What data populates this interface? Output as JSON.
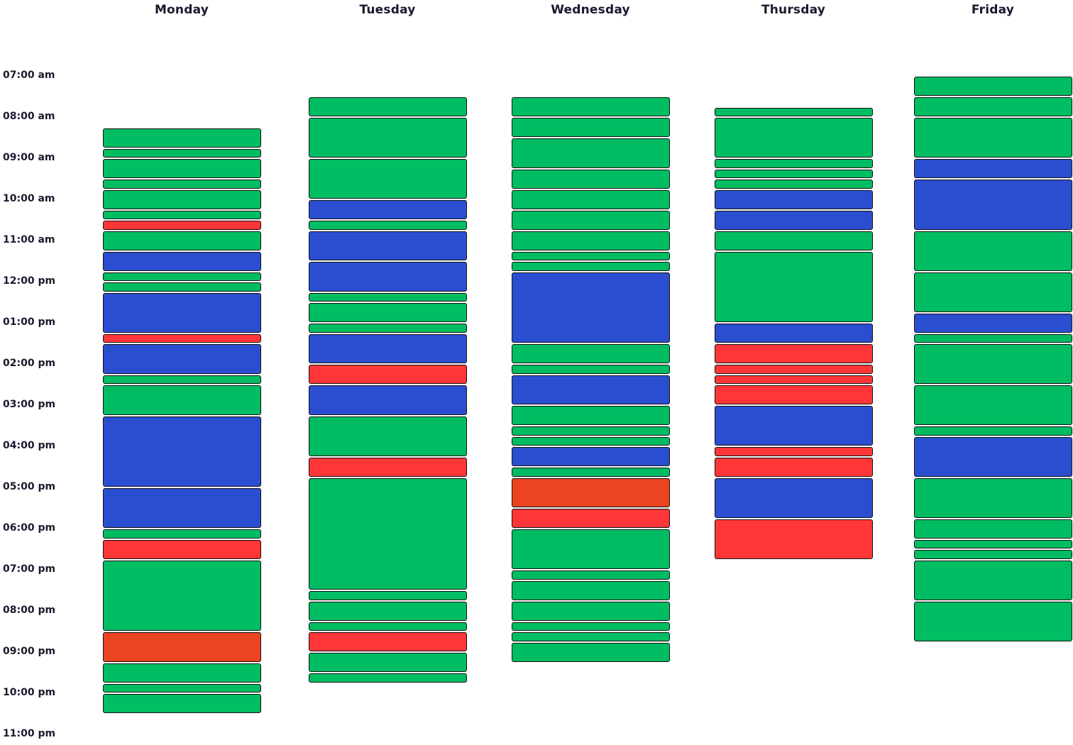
{
  "chart_data": {
    "type": "schedule",
    "title": "",
    "start_hour": 7,
    "days": [
      "Monday",
      "Tuesday",
      "Wednesday",
      "Thursday",
      "Friday"
    ],
    "time_labels": [
      "07:00 am",
      "08:00 am",
      "09:00 am",
      "10:00 am",
      "11:00 am",
      "12:00 pm",
      "01:00 pm",
      "02:00 pm",
      "03:00 pm",
      "04:00 pm",
      "05:00 pm",
      "06:00 pm",
      "07:00 pm",
      "08:00 pm",
      "09:00 pm",
      "10:00 pm",
      "11:00 pm"
    ],
    "categories": {
      "green": "#00bc62",
      "blue": "#2b4ed0",
      "red": "#ff3638",
      "orange": "#ea4422"
    },
    "events": {
      "Monday": [
        {
          "start": 8.25,
          "end": 8.75,
          "category": "green"
        },
        {
          "start": 8.75,
          "end": 9.0,
          "category": "green"
        },
        {
          "start": 9.0,
          "end": 9.5,
          "category": "green"
        },
        {
          "start": 9.5,
          "end": 9.75,
          "category": "green"
        },
        {
          "start": 9.75,
          "end": 10.25,
          "category": "green"
        },
        {
          "start": 10.25,
          "end": 10.5,
          "category": "green"
        },
        {
          "start": 10.5,
          "end": 10.75,
          "category": "red"
        },
        {
          "start": 10.75,
          "end": 11.25,
          "category": "green"
        },
        {
          "start": 11.25,
          "end": 11.75,
          "category": "blue"
        },
        {
          "start": 11.75,
          "end": 12.0,
          "category": "green"
        },
        {
          "start": 12.0,
          "end": 12.25,
          "category": "green"
        },
        {
          "start": 12.25,
          "end": 13.25,
          "category": "blue"
        },
        {
          "start": 13.25,
          "end": 13.5,
          "category": "red"
        },
        {
          "start": 13.5,
          "end": 14.25,
          "category": "blue"
        },
        {
          "start": 14.25,
          "end": 14.5,
          "category": "green"
        },
        {
          "start": 14.5,
          "end": 15.25,
          "category": "green"
        },
        {
          "start": 15.25,
          "end": 17.0,
          "category": "blue"
        },
        {
          "start": 17.0,
          "end": 18.0,
          "category": "blue"
        },
        {
          "start": 18.0,
          "end": 18.25,
          "category": "green"
        },
        {
          "start": 18.25,
          "end": 18.75,
          "category": "red"
        },
        {
          "start": 18.75,
          "end": 20.5,
          "category": "green"
        },
        {
          "start": 20.5,
          "end": 21.25,
          "category": "orange"
        },
        {
          "start": 21.25,
          "end": 21.75,
          "category": "green"
        },
        {
          "start": 21.75,
          "end": 22.0,
          "category": "green"
        },
        {
          "start": 22.0,
          "end": 22.5,
          "category": "green"
        }
      ],
      "Tuesday": [
        {
          "start": 7.5,
          "end": 8.0,
          "category": "green"
        },
        {
          "start": 8.0,
          "end": 9.0,
          "category": "green"
        },
        {
          "start": 9.0,
          "end": 10.0,
          "category": "green"
        },
        {
          "start": 10.0,
          "end": 10.5,
          "category": "blue"
        },
        {
          "start": 10.5,
          "end": 10.75,
          "category": "green"
        },
        {
          "start": 10.75,
          "end": 11.5,
          "category": "blue"
        },
        {
          "start": 11.5,
          "end": 12.25,
          "category": "blue"
        },
        {
          "start": 12.25,
          "end": 12.5,
          "category": "green"
        },
        {
          "start": 12.5,
          "end": 13.0,
          "category": "green"
        },
        {
          "start": 13.0,
          "end": 13.25,
          "category": "green"
        },
        {
          "start": 13.25,
          "end": 14.0,
          "category": "blue"
        },
        {
          "start": 14.0,
          "end": 14.5,
          "category": "red"
        },
        {
          "start": 14.5,
          "end": 15.25,
          "category": "blue"
        },
        {
          "start": 15.25,
          "end": 16.25,
          "category": "green"
        },
        {
          "start": 16.25,
          "end": 16.75,
          "category": "red"
        },
        {
          "start": 16.75,
          "end": 19.5,
          "category": "green"
        },
        {
          "start": 19.5,
          "end": 19.75,
          "category": "green"
        },
        {
          "start": 19.75,
          "end": 20.25,
          "category": "green"
        },
        {
          "start": 20.25,
          "end": 20.5,
          "category": "green"
        },
        {
          "start": 20.5,
          "end": 21.0,
          "category": "red"
        },
        {
          "start": 21.0,
          "end": 21.5,
          "category": "green"
        },
        {
          "start": 21.5,
          "end": 21.75,
          "category": "green"
        }
      ],
      "Wednesday": [
        {
          "start": 7.5,
          "end": 8.0,
          "category": "green"
        },
        {
          "start": 8.0,
          "end": 8.5,
          "category": "green"
        },
        {
          "start": 8.5,
          "end": 9.25,
          "category": "green"
        },
        {
          "start": 9.25,
          "end": 9.75,
          "category": "green"
        },
        {
          "start": 9.75,
          "end": 10.25,
          "category": "green"
        },
        {
          "start": 10.25,
          "end": 10.75,
          "category": "green"
        },
        {
          "start": 10.75,
          "end": 11.25,
          "category": "green"
        },
        {
          "start": 11.25,
          "end": 11.5,
          "category": "green"
        },
        {
          "start": 11.5,
          "end": 11.75,
          "category": "green"
        },
        {
          "start": 11.75,
          "end": 13.5,
          "category": "blue"
        },
        {
          "start": 13.5,
          "end": 14.0,
          "category": "green"
        },
        {
          "start": 14.0,
          "end": 14.25,
          "category": "green"
        },
        {
          "start": 14.25,
          "end": 15.0,
          "category": "blue"
        },
        {
          "start": 15.0,
          "end": 15.5,
          "category": "green"
        },
        {
          "start": 15.5,
          "end": 15.75,
          "category": "green"
        },
        {
          "start": 15.75,
          "end": 16.0,
          "category": "green"
        },
        {
          "start": 16.0,
          "end": 16.5,
          "category": "blue"
        },
        {
          "start": 16.5,
          "end": 16.75,
          "category": "green"
        },
        {
          "start": 16.75,
          "end": 17.5,
          "category": "orange"
        },
        {
          "start": 17.5,
          "end": 18.0,
          "category": "red"
        },
        {
          "start": 18.0,
          "end": 19.0,
          "category": "green"
        },
        {
          "start": 19.0,
          "end": 19.25,
          "category": "green"
        },
        {
          "start": 19.25,
          "end": 19.75,
          "category": "green"
        },
        {
          "start": 19.75,
          "end": 20.25,
          "category": "green"
        },
        {
          "start": 20.25,
          "end": 20.5,
          "category": "green"
        },
        {
          "start": 20.5,
          "end": 20.75,
          "category": "green"
        },
        {
          "start": 20.75,
          "end": 21.25,
          "category": "green"
        }
      ],
      "Thursday": [
        {
          "start": 7.75,
          "end": 8.0,
          "category": "green"
        },
        {
          "start": 8.0,
          "end": 9.0,
          "category": "green"
        },
        {
          "start": 9.0,
          "end": 9.25,
          "category": "green"
        },
        {
          "start": 9.25,
          "end": 9.5,
          "category": "green"
        },
        {
          "start": 9.5,
          "end": 9.75,
          "category": "green"
        },
        {
          "start": 9.75,
          "end": 10.25,
          "category": "blue"
        },
        {
          "start": 10.25,
          "end": 10.75,
          "category": "blue"
        },
        {
          "start": 10.75,
          "end": 11.25,
          "category": "green"
        },
        {
          "start": 11.25,
          "end": 13.0,
          "category": "green"
        },
        {
          "start": 13.0,
          "end": 13.5,
          "category": "blue"
        },
        {
          "start": 13.5,
          "end": 14.0,
          "category": "red"
        },
        {
          "start": 14.0,
          "end": 14.25,
          "category": "red"
        },
        {
          "start": 14.25,
          "end": 14.5,
          "category": "red"
        },
        {
          "start": 14.5,
          "end": 15.0,
          "category": "red"
        },
        {
          "start": 15.0,
          "end": 16.0,
          "category": "blue"
        },
        {
          "start": 16.0,
          "end": 16.25,
          "category": "red"
        },
        {
          "start": 16.25,
          "end": 16.75,
          "category": "red"
        },
        {
          "start": 16.75,
          "end": 17.75,
          "category": "blue"
        },
        {
          "start": 17.75,
          "end": 18.75,
          "category": "red"
        }
      ],
      "Friday": [
        {
          "start": 7.0,
          "end": 7.5,
          "category": "green"
        },
        {
          "start": 7.5,
          "end": 8.0,
          "category": "green"
        },
        {
          "start": 8.0,
          "end": 9.0,
          "category": "green"
        },
        {
          "start": 9.0,
          "end": 9.5,
          "category": "blue"
        },
        {
          "start": 9.5,
          "end": 10.75,
          "category": "blue"
        },
        {
          "start": 10.75,
          "end": 11.75,
          "category": "green"
        },
        {
          "start": 11.75,
          "end": 12.75,
          "category": "green"
        },
        {
          "start": 12.75,
          "end": 13.25,
          "category": "blue"
        },
        {
          "start": 13.25,
          "end": 13.5,
          "category": "green"
        },
        {
          "start": 13.5,
          "end": 14.5,
          "category": "green"
        },
        {
          "start": 14.5,
          "end": 15.5,
          "category": "green"
        },
        {
          "start": 15.5,
          "end": 15.75,
          "category": "green"
        },
        {
          "start": 15.75,
          "end": 16.75,
          "category": "blue"
        },
        {
          "start": 16.75,
          "end": 17.75,
          "category": "green"
        },
        {
          "start": 17.75,
          "end": 18.25,
          "category": "green"
        },
        {
          "start": 18.25,
          "end": 18.5,
          "category": "green"
        },
        {
          "start": 18.5,
          "end": 18.75,
          "category": "green"
        },
        {
          "start": 18.75,
          "end": 19.75,
          "category": "green"
        },
        {
          "start": 19.75,
          "end": 20.75,
          "category": "green"
        }
      ]
    }
  }
}
